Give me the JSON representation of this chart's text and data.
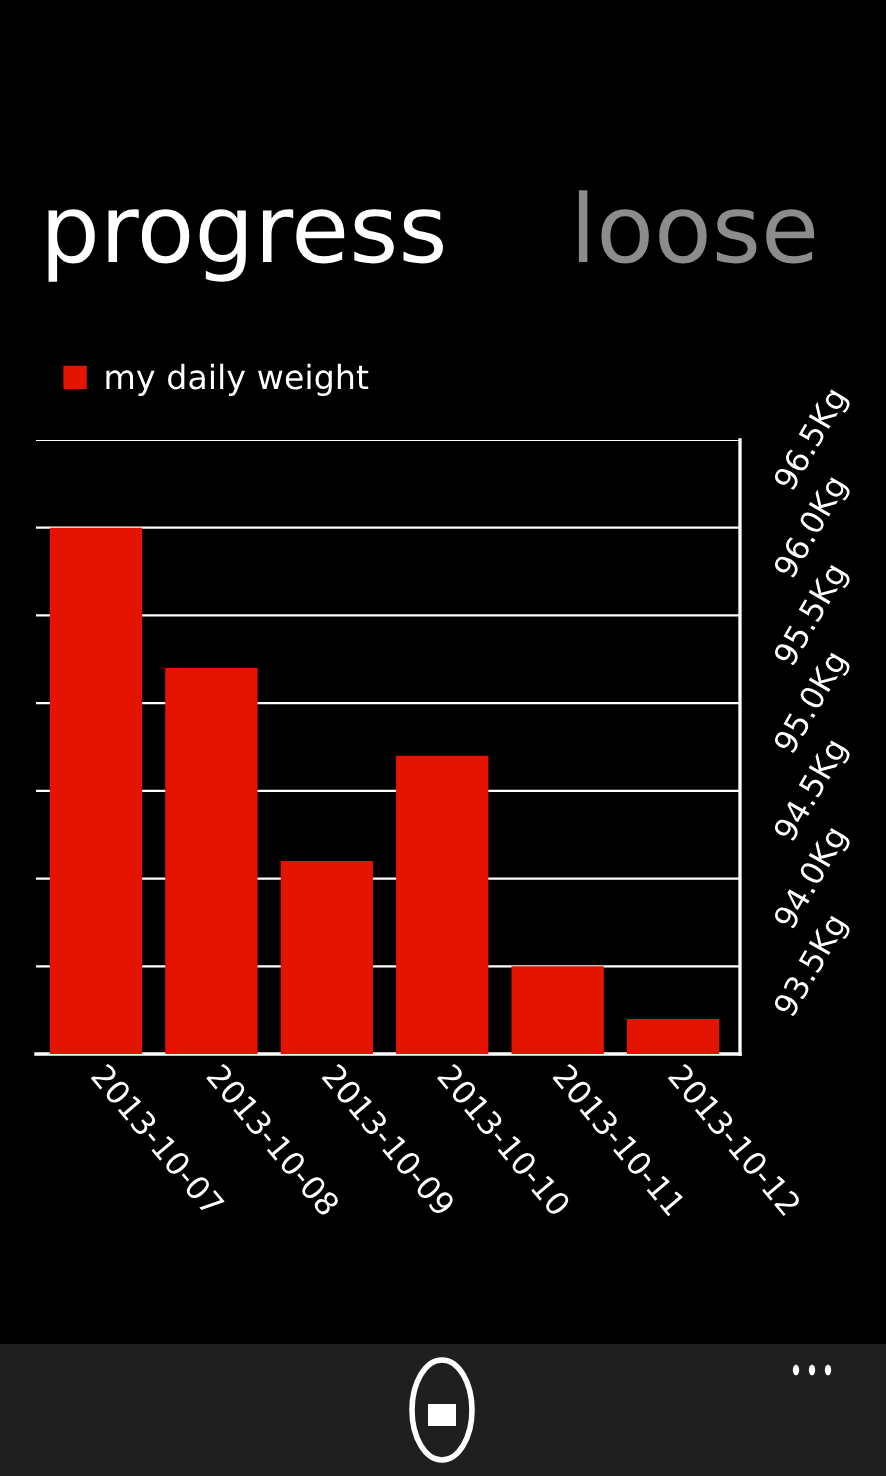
{
  "chart_data": {
    "type": "bar",
    "title": "progress",
    "subtitle": "loose",
    "categories": [
      "2013-10-07",
      "2013-10-08",
      "2013-10-09",
      "2013-10-10",
      "2013-10-11",
      "2013-10-12"
    ],
    "series": [
      {
        "name": "my daily weight",
        "color": "#e51400",
        "values": [
          96.0,
          95.2,
          94.1,
          94.7,
          93.5,
          93.2
        ]
      }
    ],
    "ylim": [
      93.0,
      96.5
    ],
    "yticks": [
      {
        "value": 93.0,
        "label": null
      },
      {
        "value": 93.5,
        "label": "93.5Kg"
      },
      {
        "value": 94.0,
        "label": "94.0Kg"
      },
      {
        "value": 94.5,
        "label": "94.5Kg"
      },
      {
        "value": 95.0,
        "label": "95.0Kg"
      },
      {
        "value": 95.5,
        "label": "95.5Kg"
      },
      {
        "value": 96.0,
        "label": "96.0Kg"
      },
      {
        "value": 96.5,
        "label": "96.5Kg"
      }
    ],
    "grid": "y",
    "legend": "top left"
  }
}
